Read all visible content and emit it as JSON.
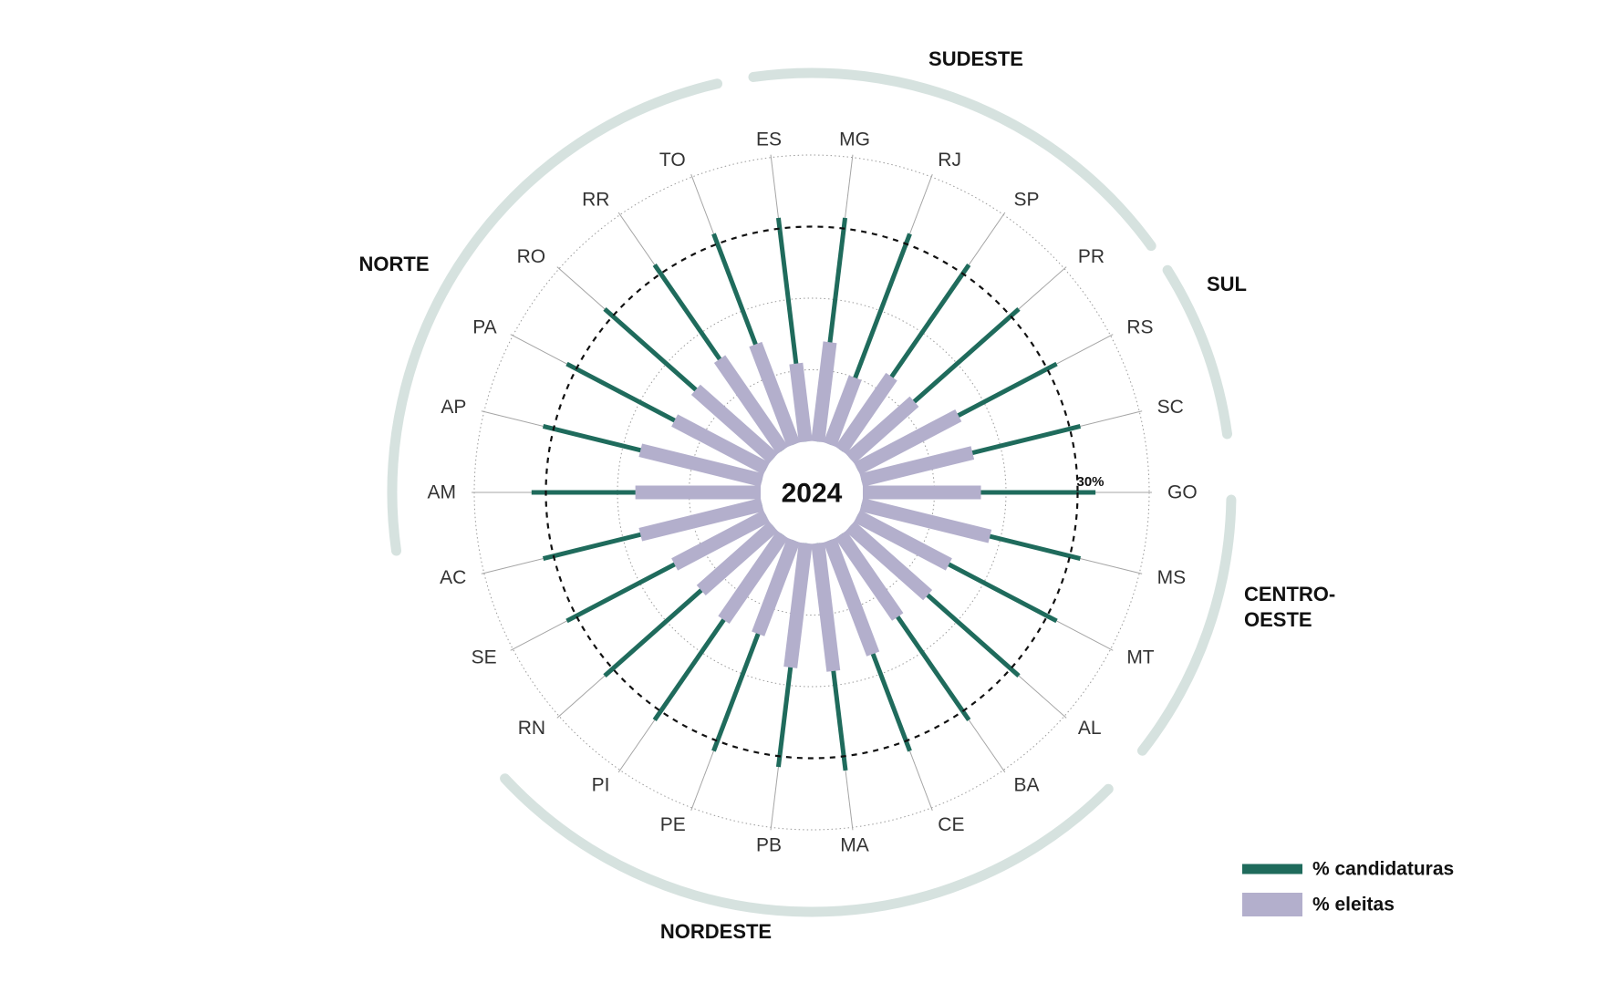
{
  "chart_data": {
    "type": "radial-bar",
    "center_label": "2024",
    "reference_label": "30%",
    "reference_value": 30,
    "scale_max": 40,
    "grid_rings": [
      10,
      20,
      30,
      40
    ],
    "legend_position": "bottom-right",
    "series": [
      {
        "key": "candidaturas",
        "name": "% candidaturas",
        "color": "#1f6b5c"
      },
      {
        "key": "eleitas",
        "name": "% eleitas",
        "color": "#b3afcc"
      }
    ],
    "categories": [
      "GO",
      "MS",
      "MT",
      "AL",
      "BA",
      "CE",
      "MA",
      "PB",
      "PE",
      "PI",
      "RN",
      "SE",
      "AC",
      "AM",
      "AP",
      "PA",
      "RO",
      "RR",
      "TO",
      "ES",
      "MG",
      "RJ",
      "SP",
      "PR",
      "RS",
      "SC"
    ],
    "candidaturas": [
      32.5,
      31.5,
      31.5,
      31.5,
      31.5,
      31.5,
      32,
      31.5,
      31.5,
      31.5,
      31.5,
      31.5,
      31.5,
      32,
      31.5,
      31.5,
      31.5,
      31.5,
      31.5,
      31.5,
      31.5,
      31.5,
      31.5,
      31.5,
      31.5,
      31.5
    ],
    "eleitas": [
      16.5,
      18.5,
      14.5,
      14.5,
      14,
      17,
      18,
      17.5,
      14,
      14.5,
      13.5,
      14.5,
      17.5,
      17.5,
      17.5,
      14.5,
      14.5,
      15.5,
      15,
      11,
      14,
      10,
      12.5,
      12,
      16,
      16
    ],
    "regions": [
      {
        "name": "SUDESTE",
        "lines": [
          "SUDESTE"
        ]
      },
      {
        "name": "SUL",
        "lines": [
          "SUL"
        ]
      },
      {
        "name": "CENTRO-OESTE",
        "lines": [
          "CENTRO-",
          "OESTE"
        ]
      },
      {
        "name": "NORDESTE",
        "lines": [
          "NORDESTE"
        ]
      },
      {
        "name": "NORTE",
        "lines": [
          "NORTE"
        ]
      }
    ],
    "colors": {
      "candidaturas": "#1f6b5c",
      "eleitas": "#b3afcc",
      "region_arc": "#d6e2df",
      "grid": "#9a9a9a",
      "leader": "#a5a5a5",
      "reference": "#111111"
    }
  }
}
